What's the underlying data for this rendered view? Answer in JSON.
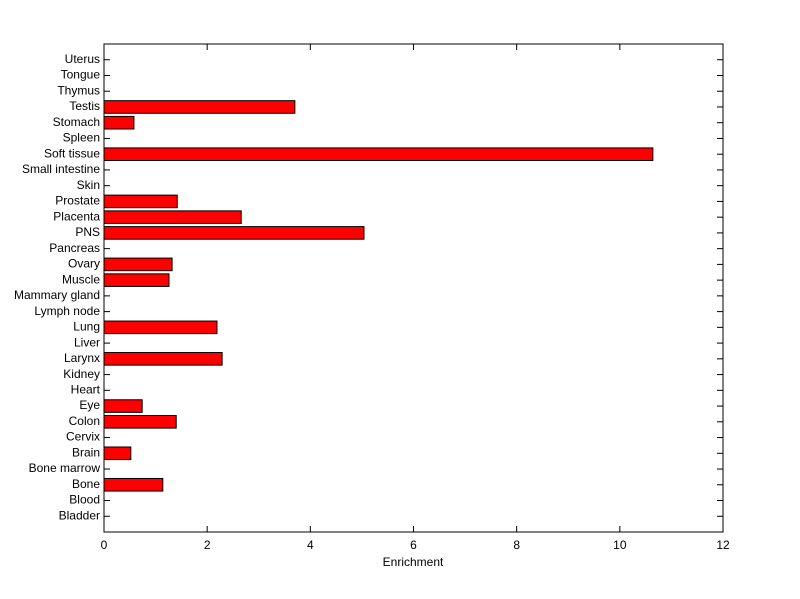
{
  "chart_data": {
    "type": "barh",
    "xlabel": "Enrichment",
    "categories": [
      "Bladder",
      "Blood",
      "Bone",
      "Bone marrow",
      "Brain",
      "Cervix",
      "Colon",
      "Eye",
      "Heart",
      "Kidney",
      "Larynx",
      "Liver",
      "Lung",
      "Lymph node",
      "Mammary gland",
      "Muscle",
      "Ovary",
      "Pancreas",
      "PNS",
      "Placenta",
      "Prostate",
      "Skin",
      "Small intestine",
      "Soft tissue",
      "Spleen",
      "Stomach",
      "Testis",
      "Thymus",
      "Tongue",
      "Uterus"
    ],
    "values": [
      0,
      0,
      1.14,
      0,
      0.52,
      0,
      1.4,
      0.74,
      0,
      0,
      2.29,
      0,
      2.19,
      0,
      0,
      1.26,
      1.32,
      0,
      5.04,
      2.66,
      1.42,
      0,
      0,
      10.64,
      0,
      0.58,
      3.7,
      0,
      0,
      0
    ],
    "color": "#ff0000",
    "xlim": [
      0,
      12
    ],
    "xticks": [
      0,
      2,
      4,
      6,
      8,
      10,
      12
    ]
  }
}
